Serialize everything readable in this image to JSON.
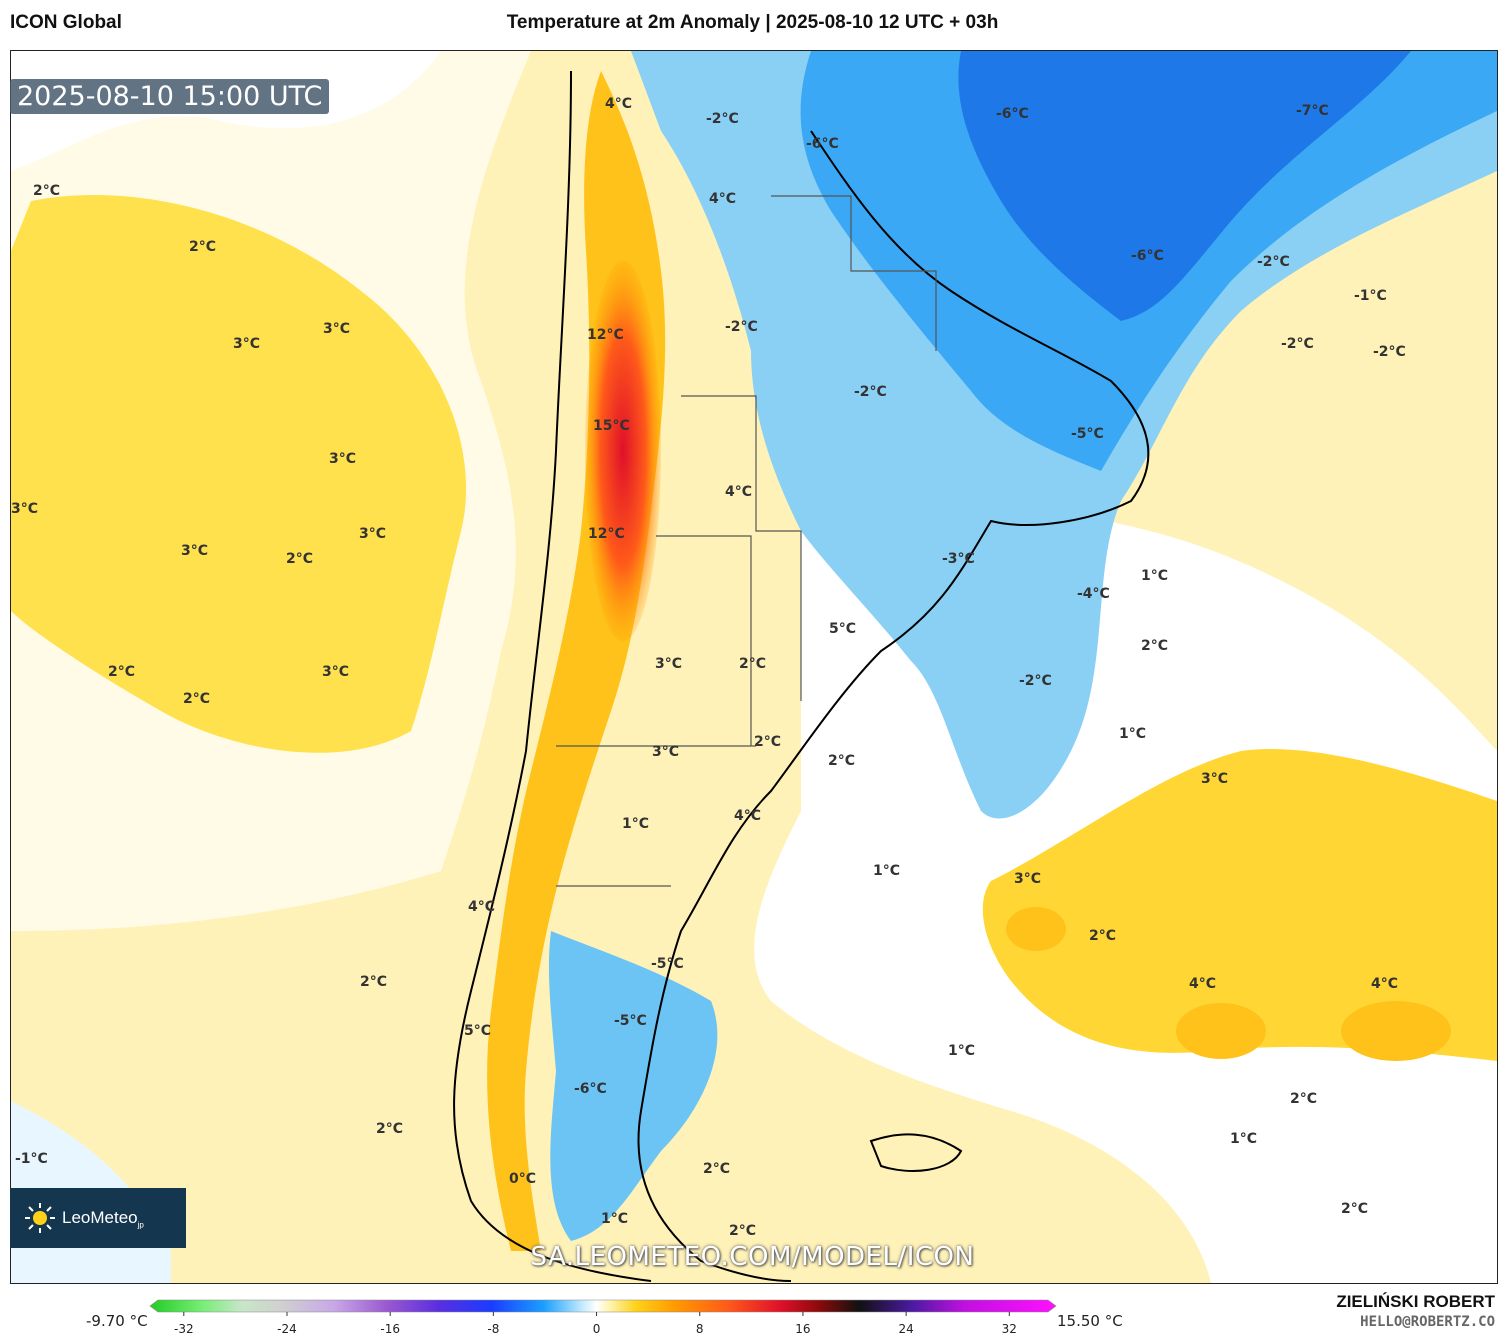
{
  "header": {
    "model": "ICON Global",
    "title": "Temperature at 2m Anomaly | 2025-08-10 12 UTC + 03h"
  },
  "valid_time": "2025-08-10 15:00 UTC",
  "site_url": "SA.LEOMETEO.COM/MODEL/ICON",
  "logo": {
    "name": "LeoMeteo",
    "suffix": "jp"
  },
  "credits": {
    "author": "ZIELIŃSKI ROBERT",
    "email": "HELLO@ROBERTZ.CO"
  },
  "colorbar": {
    "min_label": "-9.70 °C",
    "max_label": "15.50 °C",
    "ticks": [
      "-32",
      "-24",
      "-16",
      "-8",
      "0",
      "8",
      "16",
      "24",
      "32"
    ],
    "range": [
      -34,
      35
    ],
    "stops": [
      {
        "v": -34,
        "c": "#22cc22"
      },
      {
        "v": -30,
        "c": "#77ee77"
      },
      {
        "v": -27,
        "c": "#c8e6c8"
      },
      {
        "v": -24,
        "c": "#d0d0d0"
      },
      {
        "v": -20,
        "c": "#c8a8e8"
      },
      {
        "v": -16,
        "c": "#9b59d0"
      },
      {
        "v": -12,
        "c": "#5a2ee0"
      },
      {
        "v": -8,
        "c": "#1a3cff"
      },
      {
        "v": -4,
        "c": "#1aa0ff"
      },
      {
        "v": -1,
        "c": "#c8ecff"
      },
      {
        "v": 0,
        "c": "#ffffff"
      },
      {
        "v": 1,
        "c": "#fff4b0"
      },
      {
        "v": 3,
        "c": "#ffd21a"
      },
      {
        "v": 6,
        "c": "#ff9a00"
      },
      {
        "v": 10,
        "c": "#ff5a1a"
      },
      {
        "v": 14,
        "c": "#e0102a"
      },
      {
        "v": 17,
        "c": "#8a0a0a"
      },
      {
        "v": 20,
        "c": "#111111"
      },
      {
        "v": 24,
        "c": "#4a1aa0"
      },
      {
        "v": 28,
        "c": "#c010e0"
      },
      {
        "v": 35,
        "c": "#ff10ff"
      }
    ]
  },
  "map_labels": [
    "4°C",
    "-2°C",
    "-6°C",
    "-6°C",
    "-7°C",
    "2°C",
    "2°C",
    "4°C",
    "3°C",
    "3°C",
    "12°C",
    "-2°C",
    "-6°C",
    "-2°C",
    "-1°C",
    "-2°C",
    "-2°C",
    "-2°C",
    "3°C",
    "15°C",
    "-5°C",
    "3°C",
    "4°C",
    "3°C",
    "3°C",
    "2°C",
    "12°C",
    "-3°C",
    "-4°C",
    "1°C",
    "2°C",
    "5°C",
    "2°C",
    "3°C",
    "2°C",
    "3°C",
    "-2°C",
    "2°C",
    "1°C",
    "3°C",
    "2°C",
    "2°C",
    "3°C",
    "1°C",
    "4°C",
    "1°C",
    "3°C",
    "4°C",
    "2°C",
    "-5°C",
    "4°C",
    "2°C",
    "4°C",
    "5°C",
    "-5°C",
    "1°C",
    "-6°C",
    "2°C",
    "1°C",
    "-1°C",
    "1°C",
    "2°C",
    "2°C",
    "0°C",
    "2°C",
    "2°C"
  ]
}
